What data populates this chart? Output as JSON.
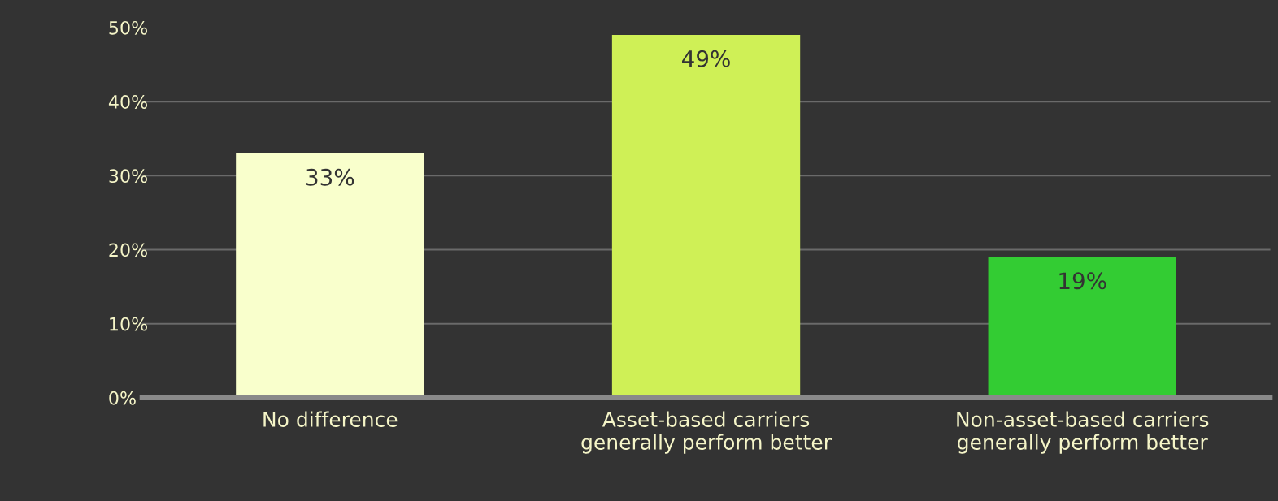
{
  "chart_data": {
    "type": "bar",
    "categories": [
      "No difference",
      "Asset-based carriers\ngenerally perform better",
      "Non-asset-based carriers\ngenerally perform better"
    ],
    "values": [
      33,
      49,
      19
    ],
    "colors": [
      "#f9ffcc",
      "#cff056",
      "#33cc33"
    ],
    "value_labels": [
      "33%",
      "49%",
      "19%"
    ],
    "ylim": [
      0,
      50
    ],
    "yticks": [
      {
        "value": 0,
        "label": "0%"
      },
      {
        "value": 10,
        "label": "10%"
      },
      {
        "value": 20,
        "label": "20%"
      },
      {
        "value": 30,
        "label": "30%"
      },
      {
        "value": 40,
        "label": "40%"
      },
      {
        "value": 50,
        "label": "50%"
      }
    ],
    "grid": "y"
  }
}
